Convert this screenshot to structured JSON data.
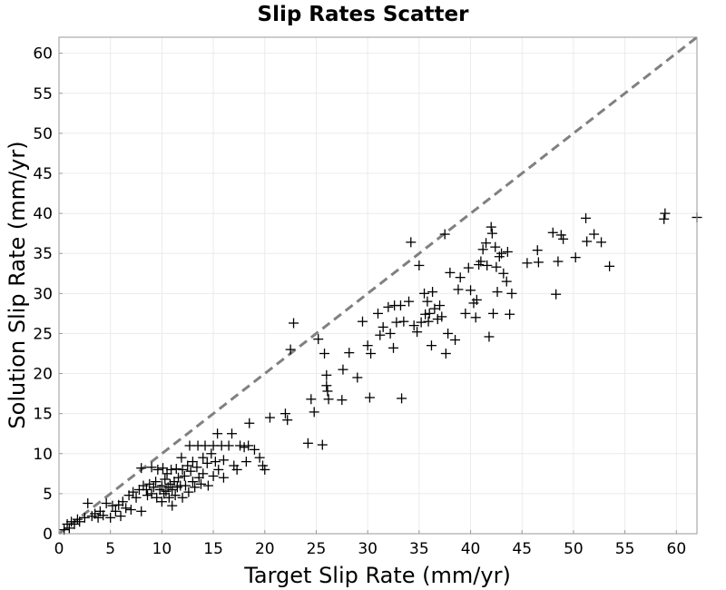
{
  "chart_data": {
    "type": "scatter",
    "title": "Slip Rates Scatter",
    "xlabel": "Target Slip Rate (mm/yr)",
    "ylabel": "Solution Slip Rate (mm/yr)",
    "xlim": [
      0,
      62
    ],
    "ylim": [
      0,
      62
    ],
    "xticks": [
      "0",
      "5",
      "10",
      "15",
      "20",
      "25",
      "30",
      "35",
      "40",
      "45",
      "50",
      "55",
      "60"
    ],
    "yticks": [
      "0",
      "5",
      "10",
      "15",
      "20",
      "25",
      "30",
      "35",
      "40",
      "45",
      "50",
      "55",
      "60"
    ],
    "grid": true,
    "reference_line": {
      "style": "dashed",
      "color": "#808080",
      "x": [
        0,
        62
      ],
      "y": [
        0,
        62
      ]
    },
    "marker": "plus",
    "marker_color": "#000000",
    "points": [
      [
        0.5,
        0.5
      ],
      [
        0.8,
        1.2
      ],
      [
        1.0,
        0.7
      ],
      [
        1.2,
        1.5
      ],
      [
        1.5,
        1.2
      ],
      [
        1.8,
        1.8
      ],
      [
        2.0,
        1.5
      ],
      [
        2.5,
        2.0
      ],
      [
        2.8,
        3.8
      ],
      [
        3.2,
        2.2
      ],
      [
        3.5,
        2.5
      ],
      [
        3.8,
        2.0
      ],
      [
        4.0,
        2.8
      ],
      [
        4.3,
        2.3
      ],
      [
        4.6,
        3.8
      ],
      [
        5.0,
        2.0
      ],
      [
        5.2,
        3.5
      ],
      [
        5.5,
        2.8
      ],
      [
        5.8,
        3.6
      ],
      [
        6.0,
        2.2
      ],
      [
        6.2,
        4.0
      ],
      [
        6.5,
        3.2
      ],
      [
        6.8,
        4.8
      ],
      [
        7.0,
        3.0
      ],
      [
        7.2,
        5.2
      ],
      [
        7.5,
        4.5
      ],
      [
        7.8,
        5.5
      ],
      [
        8.0,
        2.8
      ],
      [
        8.0,
        8.2
      ],
      [
        8.2,
        6.0
      ],
      [
        8.5,
        5.5
      ],
      [
        8.6,
        4.8
      ],
      [
        8.8,
        6.2
      ],
      [
        9.0,
        5.0
      ],
      [
        9.0,
        8.3
      ],
      [
        9.2,
        5.8
      ],
      [
        9.4,
        6.5
      ],
      [
        9.5,
        4.5
      ],
      [
        9.6,
        8.0
      ],
      [
        9.8,
        5.5
      ],
      [
        10.0,
        6.0
      ],
      [
        10.0,
        4.0
      ],
      [
        10.1,
        8.2
      ],
      [
        10.2,
        5.0
      ],
      [
        10.3,
        6.8
      ],
      [
        10.4,
        5.3
      ],
      [
        10.5,
        7.5
      ],
      [
        10.6,
        5.8
      ],
      [
        10.7,
        4.5
      ],
      [
        10.8,
        6.2
      ],
      [
        10.9,
        8.0
      ],
      [
        11.0,
        5.5
      ],
      [
        11.0,
        3.5
      ],
      [
        11.2,
        6.5
      ],
      [
        11.3,
        4.8
      ],
      [
        11.4,
        8.1
      ],
      [
        11.5,
        5.8
      ],
      [
        11.6,
        7.0
      ],
      [
        11.8,
        6.0
      ],
      [
        11.9,
        9.5
      ],
      [
        12.0,
        8.0
      ],
      [
        12.0,
        4.5
      ],
      [
        12.2,
        7.2
      ],
      [
        12.3,
        6.0
      ],
      [
        12.5,
        8.5
      ],
      [
        12.6,
        5.2
      ],
      [
        12.7,
        11.0
      ],
      [
        12.8,
        7.8
      ],
      [
        13.0,
        6.5
      ],
      [
        13.0,
        9.0
      ],
      [
        13.2,
        5.8
      ],
      [
        13.4,
        8.3
      ],
      [
        13.5,
        11.0
      ],
      [
        13.6,
        7.0
      ],
      [
        13.8,
        6.2
      ],
      [
        14.0,
        9.5
      ],
      [
        14.0,
        7.5
      ],
      [
        14.2,
        11.0
      ],
      [
        14.4,
        8.8
      ],
      [
        14.5,
        6.0
      ],
      [
        14.8,
        10.0
      ],
      [
        15.0,
        7.2
      ],
      [
        15.0,
        11.0
      ],
      [
        15.2,
        9.0
      ],
      [
        15.4,
        12.5
      ],
      [
        15.5,
        8.0
      ],
      [
        15.8,
        11.0
      ],
      [
        16.0,
        7.0
      ],
      [
        16.0,
        9.2
      ],
      [
        16.5,
        11.0
      ],
      [
        16.8,
        12.5
      ],
      [
        17.0,
        8.5
      ],
      [
        17.3,
        8.0
      ],
      [
        17.6,
        11.0
      ],
      [
        18.0,
        10.8
      ],
      [
        18.2,
        9.0
      ],
      [
        18.4,
        11.0
      ],
      [
        18.5,
        13.8
      ],
      [
        19.0,
        10.5
      ],
      [
        19.5,
        9.5
      ],
      [
        19.8,
        8.5
      ],
      [
        20.0,
        8.0
      ],
      [
        20.5,
        14.5
      ],
      [
        22.0,
        15.0
      ],
      [
        22.2,
        14.2
      ],
      [
        22.5,
        23.0
      ],
      [
        22.8,
        26.3
      ],
      [
        24.2,
        11.3
      ],
      [
        24.5,
        16.8
      ],
      [
        24.8,
        15.2
      ],
      [
        25.2,
        24.3
      ],
      [
        25.6,
        11.1
      ],
      [
        25.8,
        22.5
      ],
      [
        26.0,
        19.8
      ],
      [
        26.0,
        18.5
      ],
      [
        26.1,
        17.8
      ],
      [
        26.2,
        16.8
      ],
      [
        27.5,
        16.7
      ],
      [
        27.6,
        20.5
      ],
      [
        28.2,
        22.6
      ],
      [
        29.0,
        19.5
      ],
      [
        29.5,
        26.5
      ],
      [
        30.0,
        23.5
      ],
      [
        30.2,
        17.0
      ],
      [
        30.3,
        22.5
      ],
      [
        31.0,
        27.5
      ],
      [
        31.2,
        24.8
      ],
      [
        31.5,
        25.8
      ],
      [
        32.0,
        28.3
      ],
      [
        32.2,
        25.0
      ],
      [
        32.5,
        23.2
      ],
      [
        32.6,
        28.5
      ],
      [
        32.8,
        26.4
      ],
      [
        33.2,
        28.5
      ],
      [
        33.3,
        16.9
      ],
      [
        33.5,
        26.5
      ],
      [
        34.0,
        29.0
      ],
      [
        34.2,
        36.4
      ],
      [
        34.5,
        26.0
      ],
      [
        34.8,
        25.2
      ],
      [
        35.0,
        33.5
      ],
      [
        35.2,
        26.4
      ],
      [
        35.5,
        30.0
      ],
      [
        35.6,
        27.4
      ],
      [
        35.8,
        29.0
      ],
      [
        35.9,
        26.5
      ],
      [
        36.0,
        27.5
      ],
      [
        36.2,
        23.5
      ],
      [
        36.3,
        30.2
      ],
      [
        36.5,
        28.1
      ],
      [
        36.8,
        26.8
      ],
      [
        37.0,
        28.5
      ],
      [
        37.2,
        27.1
      ],
      [
        37.5,
        37.4
      ],
      [
        37.6,
        22.5
      ],
      [
        37.8,
        25.0
      ],
      [
        38.0,
        32.6
      ],
      [
        38.5,
        24.2
      ],
      [
        38.8,
        30.5
      ],
      [
        39.0,
        32.0
      ],
      [
        39.5,
        27.5
      ],
      [
        39.8,
        33.2
      ],
      [
        40.0,
        30.4
      ],
      [
        40.3,
        28.8
      ],
      [
        40.5,
        27.0
      ],
      [
        40.6,
        29.2
      ],
      [
        40.8,
        33.6
      ],
      [
        41.0,
        34.0
      ],
      [
        41.2,
        35.5
      ],
      [
        41.5,
        36.3
      ],
      [
        41.6,
        33.5
      ],
      [
        41.8,
        24.6
      ],
      [
        42.0,
        38.3
      ],
      [
        42.1,
        37.5
      ],
      [
        42.2,
        27.5
      ],
      [
        42.4,
        35.8
      ],
      [
        42.5,
        33.3
      ],
      [
        42.6,
        30.2
      ],
      [
        42.8,
        34.6
      ],
      [
        43.0,
        35.0
      ],
      [
        43.2,
        32.5
      ],
      [
        43.5,
        31.5
      ],
      [
        43.6,
        35.2
      ],
      [
        43.8,
        27.4
      ],
      [
        44.0,
        30.0
      ],
      [
        45.5,
        33.8
      ],
      [
        46.5,
        35.4
      ],
      [
        46.6,
        33.9
      ],
      [
        48.0,
        37.6
      ],
      [
        48.3,
        29.9
      ],
      [
        48.5,
        34.0
      ],
      [
        48.8,
        37.3
      ],
      [
        49.0,
        36.8
      ],
      [
        50.2,
        34.5
      ],
      [
        51.2,
        39.4
      ],
      [
        51.3,
        36.5
      ],
      [
        52.0,
        37.4
      ],
      [
        52.7,
        36.4
      ],
      [
        53.5,
        33.4
      ],
      [
        58.8,
        39.3
      ],
      [
        58.9,
        40.0
      ],
      [
        62.0,
        39.5
      ]
    ]
  }
}
